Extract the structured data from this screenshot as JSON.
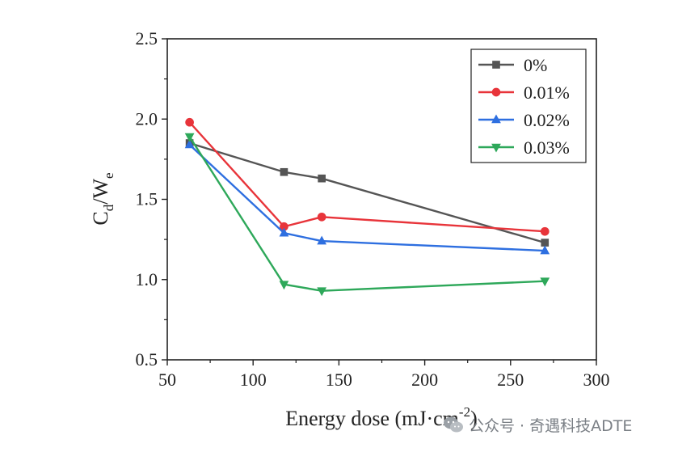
{
  "chart_data": {
    "type": "line",
    "title": "",
    "xlabel": "Energy dose (mJ·cm",
    "xlabel_sup": "-2",
    "xlabel_end": ")",
    "ylabel_main": "C",
    "ylabel_sub1": "d",
    "ylabel_mid": "/W",
    "ylabel_sub2": "e",
    "xlim": [
      50,
      300
    ],
    "ylim": [
      0.5,
      2.5
    ],
    "xticks": [
      50,
      100,
      150,
      200,
      250,
      300
    ],
    "yticks": [
      0.5,
      1.0,
      1.5,
      2.0,
      2.5
    ],
    "xtick_labels": [
      "50",
      "100",
      "150",
      "200",
      "250",
      "300"
    ],
    "ytick_labels": [
      "0.5",
      "1.0",
      "1.5",
      "2.0",
      "2.5"
    ],
    "grid": false,
    "legend_position": "top-right",
    "x": [
      63,
      118,
      140,
      270
    ],
    "series": [
      {
        "name": "0%",
        "color": "#555555",
        "marker": "square",
        "values": [
          1.85,
          1.67,
          1.63,
          1.23
        ]
      },
      {
        "name": "0.01%",
        "color": "#e8343a",
        "marker": "circle",
        "values": [
          1.98,
          1.33,
          1.39,
          1.3
        ]
      },
      {
        "name": "0.02%",
        "color": "#2e6fe0",
        "marker": "triangle-up",
        "values": [
          1.84,
          1.29,
          1.24,
          1.18
        ]
      },
      {
        "name": "0.03%",
        "color": "#2ea85a",
        "marker": "triangle-down",
        "values": [
          1.89,
          0.97,
          0.93,
          0.99
        ]
      }
    ]
  },
  "watermark": {
    "icon": "wechat-icon",
    "text": "公众号 · 奇遇科技ADTE"
  }
}
